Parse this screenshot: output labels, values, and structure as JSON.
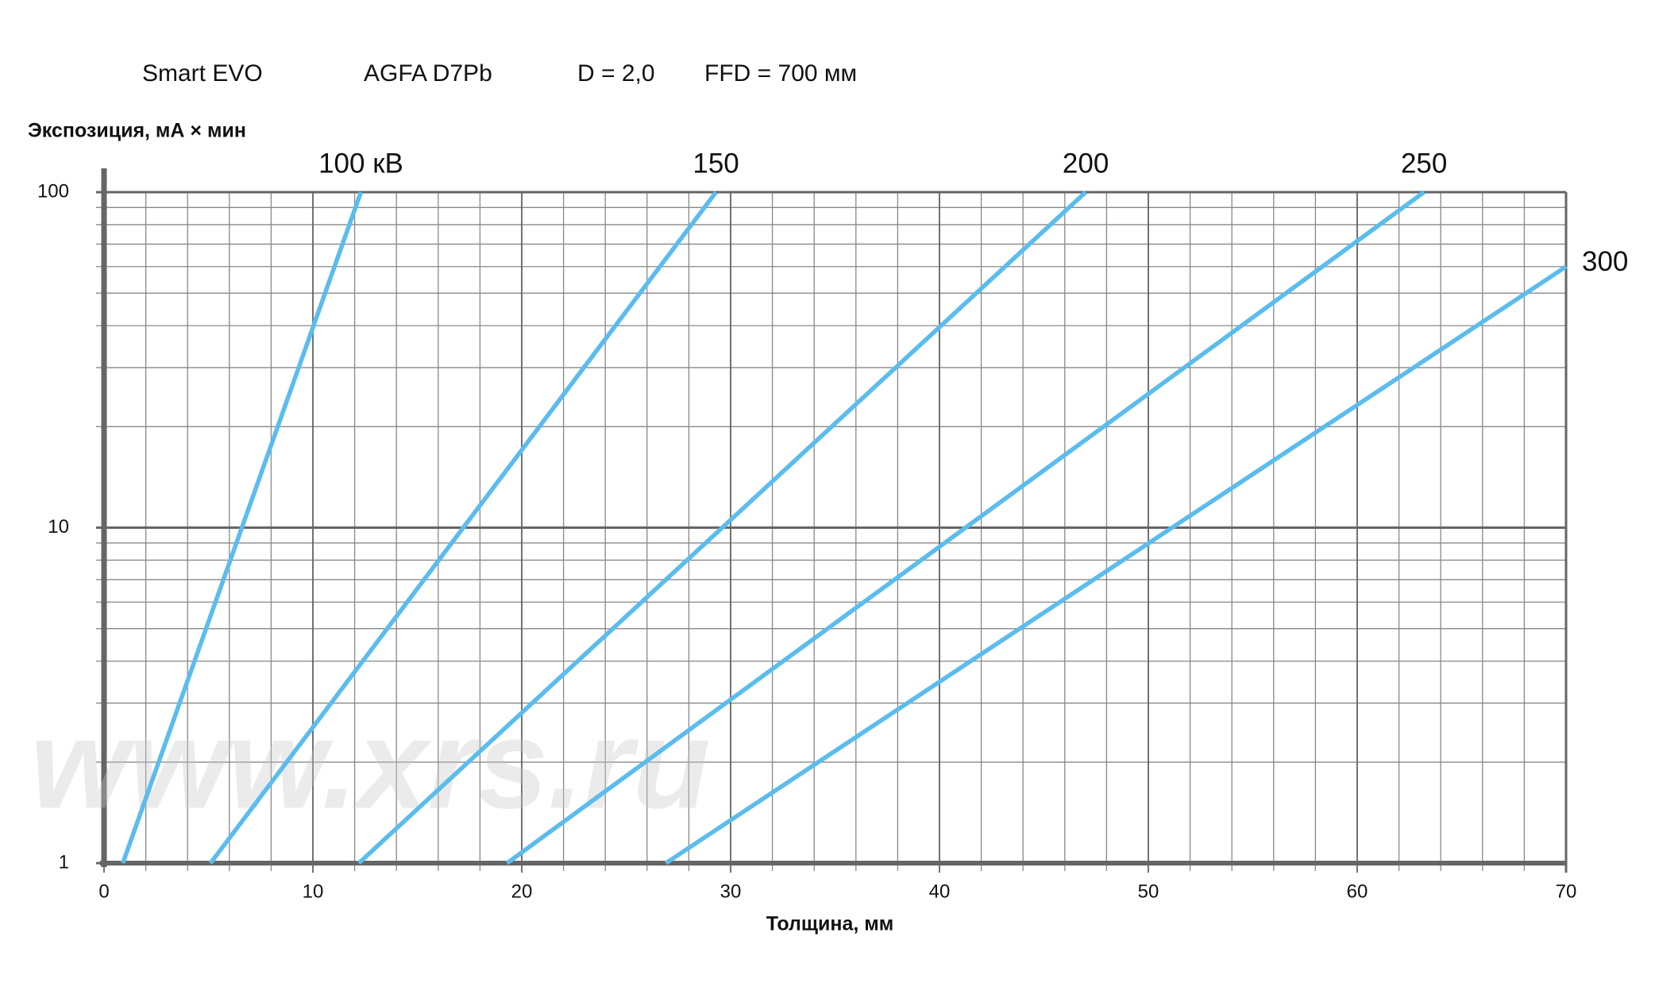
{
  "chart_data": {
    "type": "line",
    "header": [
      "Smart EVO",
      "AGFA D7Pb",
      "D = 2,0",
      "FFD = 700 мм"
    ],
    "y_label": "Экспозиция, мА × мин",
    "x_label": "Толщина, мм",
    "watermark": "www.xrs.ru",
    "log_y": true,
    "grid": true,
    "xlim": [
      0,
      70
    ],
    "xticks": [
      0,
      10,
      20,
      30,
      40,
      50,
      60,
      70
    ],
    "ylim": [
      1,
      100
    ],
    "yticks": [
      1,
      10,
      100
    ],
    "series": [
      {
        "name": "100 кВ",
        "color": "#5bbcee",
        "x": [
          0.9,
          12.3
        ],
        "values": [
          1,
          100
        ]
      },
      {
        "name": "150",
        "color": "#5bbcee",
        "x": [
          5.1,
          29.3
        ],
        "values": [
          1,
          100
        ]
      },
      {
        "name": "200",
        "color": "#5bbcee",
        "x": [
          12.2,
          47
        ],
        "values": [
          1,
          100
        ]
      },
      {
        "name": "250",
        "color": "#5bbcee",
        "x": [
          19.3,
          63.2
        ],
        "values": [
          1,
          100
        ]
      },
      {
        "name": "300",
        "color": "#5bbcee",
        "x": [
          26.9,
          70
        ],
        "values": [
          1,
          60
        ]
      }
    ]
  }
}
